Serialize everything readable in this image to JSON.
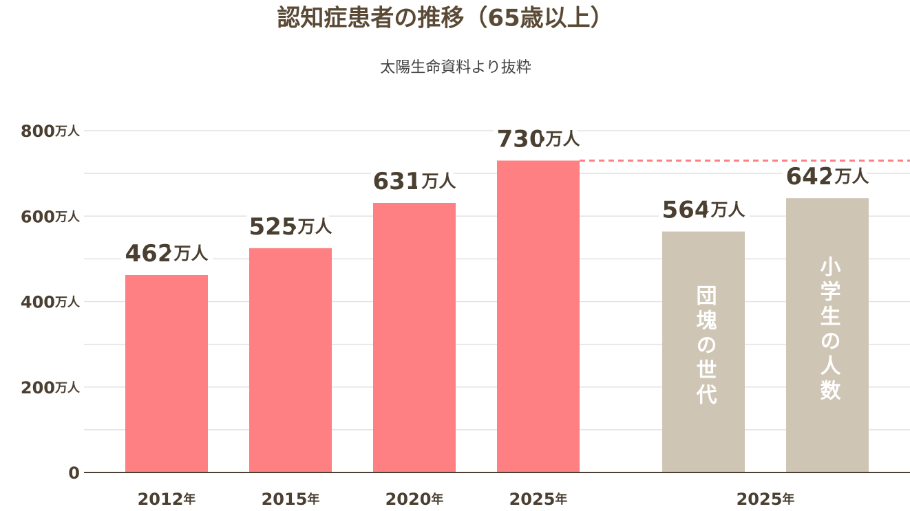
{
  "chart_data": {
    "type": "bar",
    "title": "認知症患者の推移（65歳以上）",
    "subtitle": "太陽生命資料より抜粋",
    "categories": [
      "2012年",
      "2015年",
      "2020年",
      "2025年"
    ],
    "values": [
      462,
      525,
      631,
      730
    ],
    "value_labels": [
      "462万人",
      "525万人",
      "631万人",
      "730万人"
    ],
    "color": "#fe8083",
    "groups": [
      {
        "category": "2025年",
        "names": [
          "団塊の世代",
          "小学生の人数"
        ],
        "values": [
          564,
          642
        ],
        "value_labels": [
          "564万人",
          "642万人"
        ],
        "color": "#cfc5b5"
      }
    ],
    "reference_line": {
      "value": 730,
      "color": "#fe8083"
    },
    "ylim": [
      0,
      800
    ],
    "yticks": [
      0,
      {
        "value": 200,
        "label": "200万人"
      },
      {
        "value": 400,
        "label": "400万人"
      },
      {
        "value": 600,
        "label": "600万人"
      },
      {
        "value": 800,
        "label": "800万人"
      }
    ],
    "minor_yticks": [
      100,
      300,
      500,
      700
    ],
    "grid": true
  }
}
